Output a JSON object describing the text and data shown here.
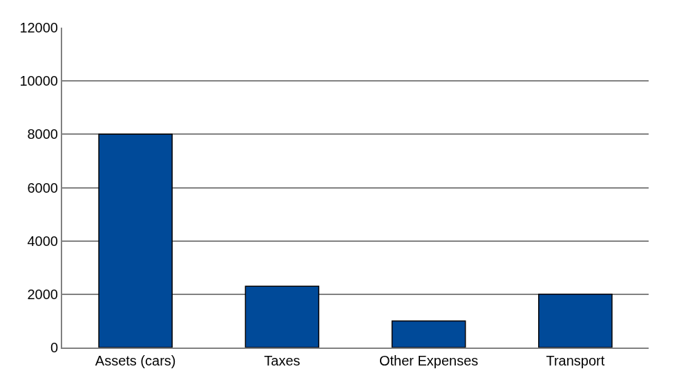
{
  "chart_data": {
    "type": "bar",
    "categories": [
      "Assets (cars)",
      "Taxes",
      "Other Expenses",
      "Transport"
    ],
    "values": [
      8000,
      2300,
      1000,
      2000
    ],
    "color": "#004a99",
    "ylim": [
      0,
      12000
    ],
    "yticks": [
      0,
      2000,
      4000,
      6000,
      8000,
      10000,
      12000
    ],
    "grid": "y"
  }
}
